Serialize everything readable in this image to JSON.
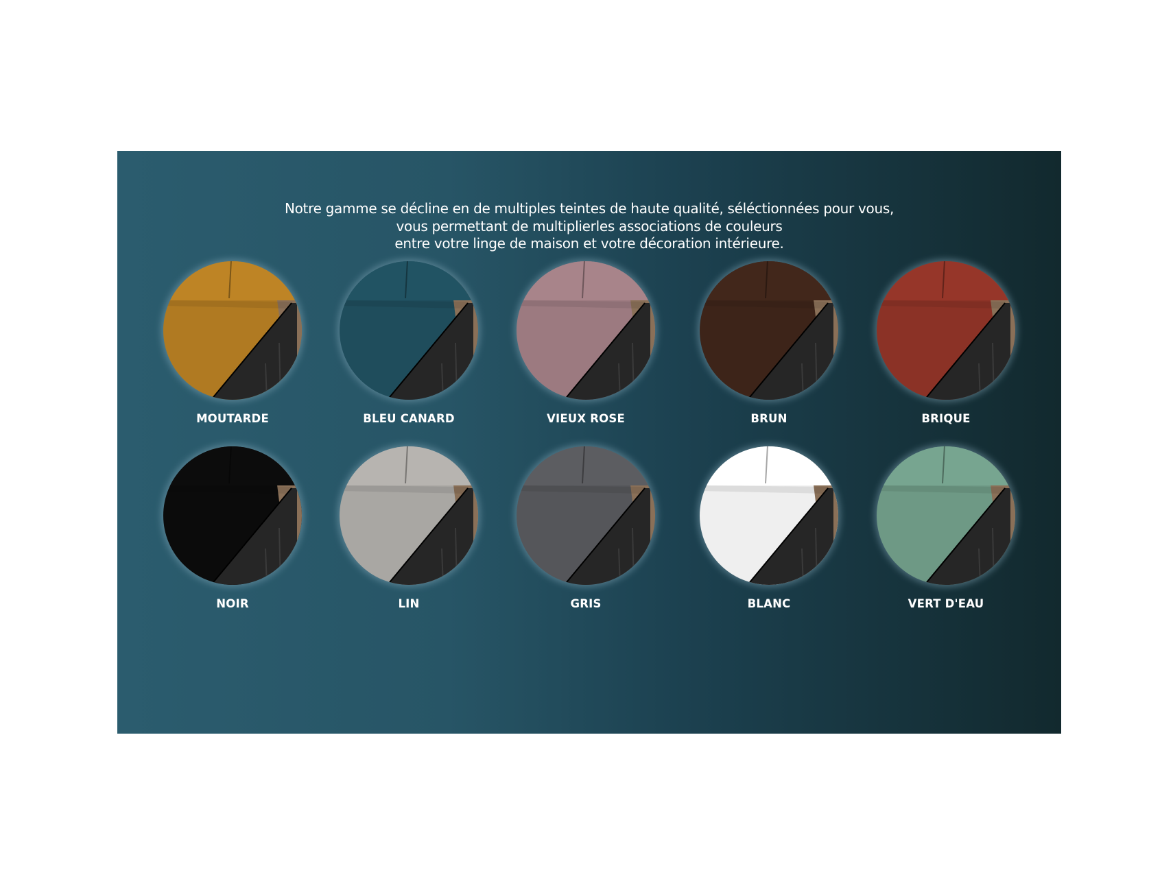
{
  "intro": {
    "lines": [
      "Notre gamme se décline en de multiples teintes de haute qualité, séléctionnées pour vous,",
      "vous permettant de multiplierles associations de couleurs",
      "entre votre linge de maison et votre décoration intérieure."
    ]
  },
  "colors": [
    {
      "name": "MOUTARDE",
      "hex": "#b07a22"
    },
    {
      "name": "BLEU CANARD",
      "hex": "#1f4d5c"
    },
    {
      "name": "VIEUX ROSE",
      "hex": "#9c7a80"
    },
    {
      "name": "BRUN",
      "hex": "#3d2419"
    },
    {
      "name": "BRIQUE",
      "hex": "#8b3226"
    },
    {
      "name": "NOIR",
      "hex": "#0b0b0b"
    },
    {
      "name": "LIN",
      "hex": "#a9a7a3"
    },
    {
      "name": "GRIS",
      "hex": "#55565a"
    },
    {
      "name": "BLANC",
      "hex": "#efefef"
    },
    {
      "name": "VERT D'EAU",
      "hex": "#6e9985"
    }
  ]
}
